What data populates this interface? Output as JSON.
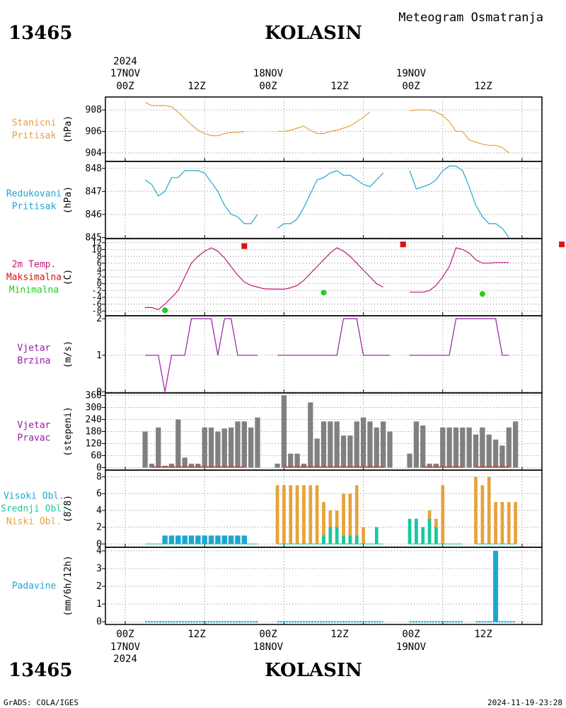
{
  "header": {
    "station_id": "13465",
    "station_name": "KOLASIN",
    "product": "Meteogram Osmatranja",
    "credit": "GrADS: COLA/IGES",
    "generated": "2024-11-19-23:28"
  },
  "time_axis": {
    "year": "2024",
    "day_labels": [
      "17NOV",
      "18NOV",
      "19NOV"
    ],
    "tick_labels": [
      "00Z",
      "12Z",
      "00Z",
      "12Z",
      "00Z",
      "12Z"
    ]
  },
  "colors": {
    "pressure": "#e8a23a",
    "reduced_pressure": "#1ea6d2",
    "temperature_line": "#c0187c",
    "tmax": "#e01010",
    "tmin": "#22cc22",
    "wind": "#9a1aa8",
    "direction_bar": "#808080",
    "direction_zero": "#c0392b",
    "cloud_high": "#1ea6d2",
    "cloud_mid": "#18c8a0",
    "cloud_low": "#e8a23a",
    "precip": "#1ea6d2"
  },
  "panels": {
    "pressure": {
      "label_lines": [
        "Stanicni",
        "Pritisak"
      ],
      "unit": "(hPa)",
      "ticks": [
        "904",
        "906",
        "908"
      ]
    },
    "reduced": {
      "label_lines": [
        "Redukovani",
        "Pritisak"
      ],
      "unit": "(hPa)",
      "ticks": [
        "845",
        "846",
        "847",
        "848"
      ]
    },
    "temp": {
      "label_lines": [
        "2m Temp.",
        "Maksimalna",
        "Minimalna"
      ],
      "unit": "(C)",
      "ticks": [
        "-8",
        "-6",
        "-4",
        "-2",
        "0",
        "2",
        "4",
        "6",
        "8",
        "10",
        "12"
      ]
    },
    "wind": {
      "label_lines": [
        "Vjetar",
        "Brzina"
      ],
      "unit": "(m/s)",
      "ticks": [
        "0",
        "1",
        "2"
      ]
    },
    "direction": {
      "label_lines": [
        "Vjetar",
        "Pravac"
      ],
      "unit": "(stepeni)",
      "ticks": [
        "0",
        "60",
        "120",
        "180",
        "240",
        "300",
        "360"
      ]
    },
    "cloud": {
      "label_lines": [
        "Visoki Obl.",
        "Srednji Obl.",
        "Niski Obl."
      ],
      "unit": "(8/8)",
      "ticks": [
        "0",
        "2",
        "4",
        "6",
        "8"
      ]
    },
    "precip": {
      "label_lines": [
        "Padavine"
      ],
      "unit": "(mm/6h/12h)",
      "ticks": [
        "0",
        "1",
        "2",
        "3",
        "4"
      ]
    }
  },
  "chart_data": {
    "type": "line",
    "x_unit": "hours since 17NOV 00Z",
    "x_range": [
      -3,
      63
    ],
    "series": {
      "station_pressure": [
        [
          3,
          908.7
        ],
        [
          4,
          908.4
        ],
        [
          6,
          908.4
        ],
        [
          7,
          908.3
        ],
        [
          8,
          907.8
        ],
        [
          9,
          907.2
        ],
        [
          10,
          906.6
        ],
        [
          11,
          906.1
        ],
        [
          12,
          905.8
        ],
        [
          13,
          905.6
        ],
        [
          14,
          905.6
        ],
        [
          15,
          905.8
        ],
        [
          16,
          905.9
        ],
        [
          17,
          905.9
        ],
        [
          18,
          906.0
        ],
        [
          23,
          906.0
        ],
        [
          24,
          906.0
        ],
        [
          25,
          906.1
        ],
        [
          26,
          906.3
        ],
        [
          27,
          906.5
        ],
        [
          28,
          906.1
        ],
        [
          29,
          905.8
        ],
        [
          30,
          905.8
        ],
        [
          31,
          906.0
        ],
        [
          32,
          906.1
        ],
        [
          33,
          906.3
        ],
        [
          34,
          906.5
        ],
        [
          35,
          906.9
        ],
        [
          36,
          907.3
        ],
        [
          37,
          907.8
        ],
        [
          43,
          907.9
        ],
        [
          44,
          908.0
        ],
        [
          45,
          908.0
        ],
        [
          46,
          908.0
        ],
        [
          47,
          907.8
        ],
        [
          48,
          907.5
        ],
        [
          49,
          906.9
        ],
        [
          50,
          906.0
        ],
        [
          51,
          906.0
        ],
        [
          52,
          905.2
        ],
        [
          53,
          905.0
        ],
        [
          54,
          904.8
        ],
        [
          55,
          904.7
        ],
        [
          56,
          904.7
        ],
        [
          57,
          904.5
        ],
        [
          58,
          904.0
        ]
      ],
      "reduced_pressure": [
        [
          3,
          847.5
        ],
        [
          4,
          847.3
        ],
        [
          5,
          846.8
        ],
        [
          6,
          847.0
        ],
        [
          7,
          847.6
        ],
        [
          8,
          847.6
        ],
        [
          9,
          847.9
        ],
        [
          10,
          847.9
        ],
        [
          11,
          847.9
        ],
        [
          12,
          847.8
        ],
        [
          13,
          847.4
        ],
        [
          14,
          847.0
        ],
        [
          15,
          846.4
        ],
        [
          16,
          846.0
        ],
        [
          17,
          845.9
        ],
        [
          18,
          845.6
        ],
        [
          19,
          845.6
        ],
        [
          20,
          846.0
        ],
        [
          23,
          845.4
        ],
        [
          24,
          845.6
        ],
        [
          25,
          845.6
        ],
        [
          26,
          845.8
        ],
        [
          27,
          846.3
        ],
        [
          28,
          846.9
        ],
        [
          29,
          847.5
        ],
        [
          30,
          847.6
        ],
        [
          31,
          847.8
        ],
        [
          32,
          847.9
        ],
        [
          33,
          847.7
        ],
        [
          34,
          847.7
        ],
        [
          35,
          847.5
        ],
        [
          36,
          847.3
        ],
        [
          37,
          847.2
        ],
        [
          38,
          847.5
        ],
        [
          39,
          847.8
        ],
        [
          43,
          847.9
        ],
        [
          44,
          847.1
        ],
        [
          45,
          847.2
        ],
        [
          46,
          847.3
        ],
        [
          47,
          847.5
        ],
        [
          48,
          847.9
        ],
        [
          49,
          848.1
        ],
        [
          50,
          848.1
        ],
        [
          51,
          847.9
        ],
        [
          52,
          847.2
        ],
        [
          53,
          846.4
        ],
        [
          54,
          845.9
        ],
        [
          55,
          845.6
        ],
        [
          56,
          845.6
        ],
        [
          57,
          845.4
        ],
        [
          58,
          845.0
        ]
      ],
      "temperature": [
        [
          3,
          -7.0
        ],
        [
          4,
          -7.0
        ],
        [
          5,
          -7.6
        ],
        [
          6,
          -6.0
        ],
        [
          7,
          -4.0
        ],
        [
          8,
          -2.0
        ],
        [
          9,
          2.0
        ],
        [
          10,
          6.0
        ],
        [
          11,
          8.0
        ],
        [
          12,
          9.5
        ],
        [
          13,
          10.5
        ],
        [
          14,
          9.5
        ],
        [
          15,
          7.5
        ],
        [
          16,
          5.0
        ],
        [
          17,
          2.5
        ],
        [
          18,
          0.5
        ],
        [
          19,
          -0.5
        ],
        [
          20,
          -1.0
        ],
        [
          21,
          -1.5
        ],
        [
          23,
          -1.6
        ],
        [
          24,
          -1.6
        ],
        [
          25,
          -1.2
        ],
        [
          26,
          -0.5
        ],
        [
          27,
          1.0
        ],
        [
          28,
          3.0
        ],
        [
          29,
          5.0
        ],
        [
          30,
          7.0
        ],
        [
          31,
          9.0
        ],
        [
          32,
          10.5
        ],
        [
          33,
          9.5
        ],
        [
          34,
          8.0
        ],
        [
          35,
          6.0
        ],
        [
          36,
          4.0
        ],
        [
          37,
          2.0
        ],
        [
          38,
          0.0
        ],
        [
          39,
          -1.0
        ],
        [
          43,
          -2.5
        ],
        [
          44,
          -2.5
        ],
        [
          45,
          -2.5
        ],
        [
          46,
          -2.0
        ],
        [
          47,
          -0.5
        ],
        [
          48,
          2.0
        ],
        [
          49,
          5.0
        ],
        [
          50,
          10.5
        ],
        [
          51,
          10.0
        ],
        [
          52,
          9.0
        ],
        [
          53,
          7.0
        ],
        [
          54,
          6.0
        ],
        [
          55,
          6.0
        ],
        [
          56,
          6.2
        ],
        [
          57,
          6.2
        ],
        [
          58,
          6.2
        ]
      ],
      "tmax": [
        [
          18,
          11.0
        ],
        [
          42,
          11.5
        ],
        [
          66,
          11.5
        ]
      ],
      "tmin": [
        [
          6,
          -7.8
        ],
        [
          30,
          -2.6
        ],
        [
          54,
          -3.0
        ]
      ],
      "wind_speed": [
        [
          3,
          1
        ],
        [
          5,
          1
        ],
        [
          6,
          0
        ],
        [
          7,
          1
        ],
        [
          8,
          1
        ],
        [
          9,
          1
        ],
        [
          10,
          2
        ],
        [
          11,
          2
        ],
        [
          12,
          2
        ],
        [
          13,
          2
        ],
        [
          14,
          1
        ],
        [
          15,
          2
        ],
        [
          16,
          2
        ],
        [
          17,
          1
        ],
        [
          18,
          1
        ],
        [
          19,
          1
        ],
        [
          20,
          1
        ],
        [
          23,
          1
        ],
        [
          24,
          1
        ],
        [
          25,
          1
        ],
        [
          26,
          1
        ],
        [
          27,
          1
        ],
        [
          28,
          1
        ],
        [
          29,
          1
        ],
        [
          30,
          1
        ],
        [
          31,
          1
        ],
        [
          32,
          1
        ],
        [
          33,
          2
        ],
        [
          34,
          2
        ],
        [
          35,
          2
        ],
        [
          36,
          1
        ],
        [
          37,
          1
        ],
        [
          38,
          1
        ],
        [
          39,
          1
        ],
        [
          40,
          1
        ],
        [
          43,
          1
        ],
        [
          44,
          1
        ],
        [
          45,
          1
        ],
        [
          46,
          1
        ],
        [
          47,
          1
        ],
        [
          48,
          1
        ],
        [
          49,
          1
        ],
        [
          50,
          2
        ],
        [
          51,
          2
        ],
        [
          52,
          2
        ],
        [
          53,
          2
        ],
        [
          54,
          2
        ],
        [
          55,
          2
        ],
        [
          56,
          2
        ],
        [
          57,
          1
        ],
        [
          58,
          1
        ]
      ],
      "wind_direction": [
        [
          3,
          180
        ],
        [
          4,
          20
        ],
        [
          5,
          200
        ],
        [
          6,
          10
        ],
        [
          7,
          20
        ],
        [
          8,
          240
        ],
        [
          9,
          50
        ],
        [
          10,
          20
        ],
        [
          11,
          20
        ],
        [
          12,
          200
        ],
        [
          13,
          200
        ],
        [
          14,
          180
        ],
        [
          15,
          195
        ],
        [
          16,
          200
        ],
        [
          17,
          230
        ],
        [
          18,
          230
        ],
        [
          19,
          200
        ],
        [
          20,
          250
        ],
        [
          23,
          20
        ],
        [
          24,
          360
        ],
        [
          25,
          70
        ],
        [
          26,
          70
        ],
        [
          27,
          20
        ],
        [
          28,
          325
        ],
        [
          29,
          145
        ],
        [
          30,
          230
        ],
        [
          31,
          230
        ],
        [
          32,
          230
        ],
        [
          33,
          160
        ],
        [
          34,
          160
        ],
        [
          35,
          230
        ],
        [
          36,
          250
        ],
        [
          37,
          230
        ],
        [
          38,
          200
        ],
        [
          39,
          230
        ],
        [
          40,
          180
        ],
        [
          43,
          70
        ],
        [
          44,
          230
        ],
        [
          45,
          210
        ],
        [
          46,
          20
        ],
        [
          47,
          20
        ],
        [
          48,
          200
        ],
        [
          49,
          200
        ],
        [
          50,
          200
        ],
        [
          51,
          200
        ],
        [
          52,
          200
        ],
        [
          53,
          165
        ],
        [
          54,
          200
        ],
        [
          55,
          165
        ],
        [
          56,
          140
        ],
        [
          57,
          110
        ],
        [
          58,
          200
        ],
        [
          59,
          230
        ]
      ],
      "cloud_high": [
        [
          6,
          1
        ],
        [
          7,
          1
        ],
        [
          8,
          1
        ],
        [
          9,
          1
        ],
        [
          10,
          1
        ],
        [
          11,
          1
        ],
        [
          12,
          1
        ],
        [
          13,
          1
        ],
        [
          14,
          1
        ],
        [
          15,
          1
        ],
        [
          16,
          1
        ],
        [
          17,
          1
        ],
        [
          18,
          1
        ]
      ],
      "cloud_mid": [
        [
          30,
          1
        ],
        [
          31,
          2
        ],
        [
          32,
          2
        ],
        [
          33,
          1
        ],
        [
          34,
          1
        ],
        [
          35,
          1
        ],
        [
          38,
          2
        ],
        [
          43,
          3
        ],
        [
          44,
          3
        ],
        [
          45,
          2
        ],
        [
          46,
          3
        ],
        [
          47,
          2
        ]
      ],
      "cloud_low": [
        [
          23,
          7
        ],
        [
          24,
          7
        ],
        [
          25,
          7
        ],
        [
          26,
          7
        ],
        [
          27,
          7
        ],
        [
          28,
          7
        ],
        [
          29,
          7
        ],
        [
          30,
          5
        ],
        [
          31,
          4
        ],
        [
          32,
          4
        ],
        [
          33,
          6
        ],
        [
          34,
          6
        ],
        [
          35,
          7
        ],
        [
          36,
          2
        ],
        [
          43,
          1
        ],
        [
          44,
          1
        ],
        [
          45,
          1
        ],
        [
          46,
          4
        ],
        [
          47,
          3
        ],
        [
          48,
          7
        ],
        [
          53,
          8
        ],
        [
          54,
          7
        ],
        [
          55,
          8
        ],
        [
          56,
          5
        ],
        [
          57,
          5
        ],
        [
          58,
          5
        ],
        [
          59,
          5
        ]
      ],
      "precip": [
        [
          56,
          4.0
        ]
      ]
    }
  }
}
